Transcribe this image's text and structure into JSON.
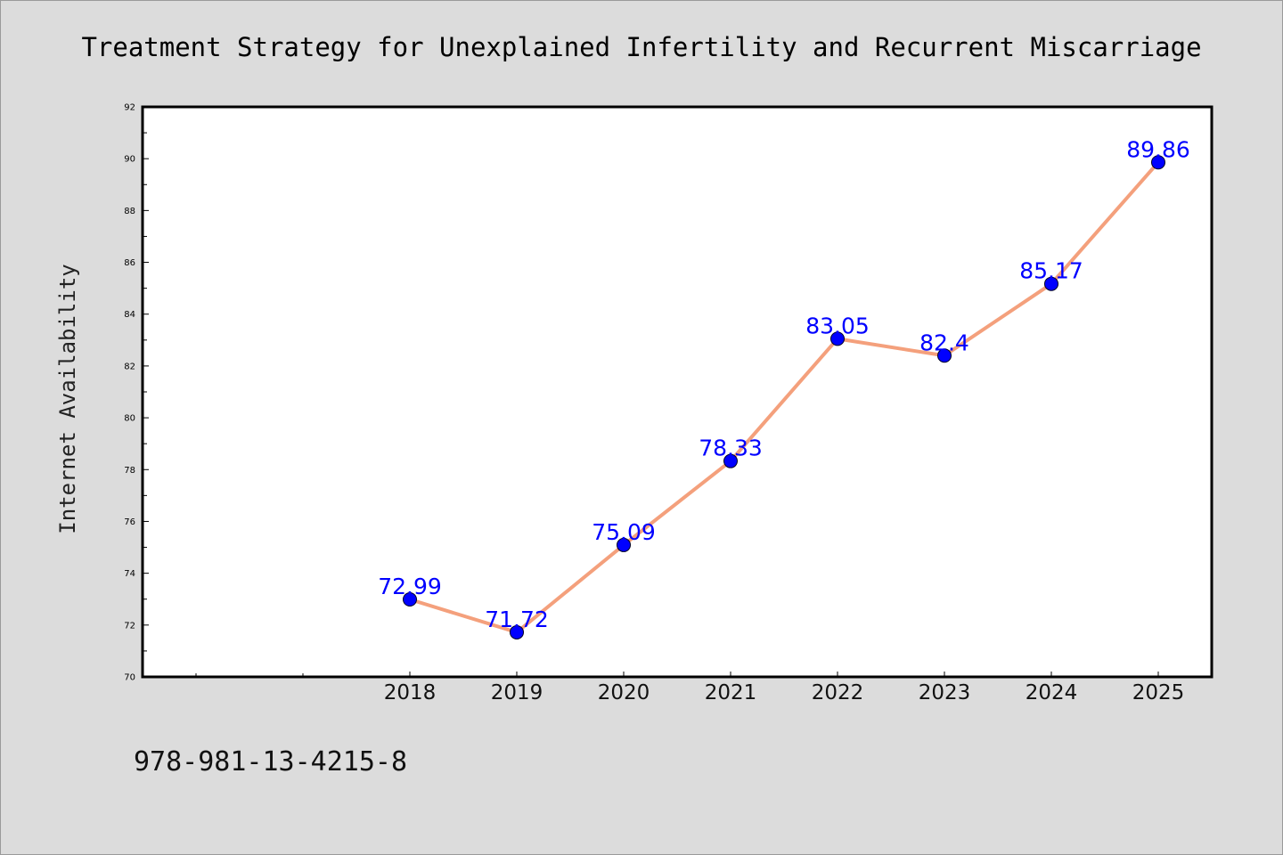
{
  "chart_data": {
    "type": "line",
    "title": "Treatment Strategy for Unexplained Infertility and Recurrent Miscarriage",
    "xlabel": "",
    "ylabel": "Internet Availability",
    "categories": [
      "2018",
      "2019",
      "2020",
      "2021",
      "2022",
      "2023",
      "2024",
      "2025"
    ],
    "series": [
      {
        "values": [
          72.99,
          71.72,
          75.09,
          78.33,
          83.05,
          82.4,
          85.17,
          89.86
        ],
        "labels": [
          "72.99",
          "71.72",
          "75.09",
          "78.33",
          "83.05",
          "82.4",
          "85.17",
          "89.86"
        ],
        "line_color": "#f4a07c",
        "marker_color": "#0000ff"
      }
    ],
    "ylim": [
      70,
      92
    ],
    "yticks": [
      "70",
      "72",
      "74",
      "76",
      "78",
      "80",
      "82",
      "84",
      "86",
      "88",
      "90",
      "92"
    ],
    "grid": false,
    "legend": "none"
  },
  "footer": {
    "isbn": "978-981-13-4215-8"
  }
}
